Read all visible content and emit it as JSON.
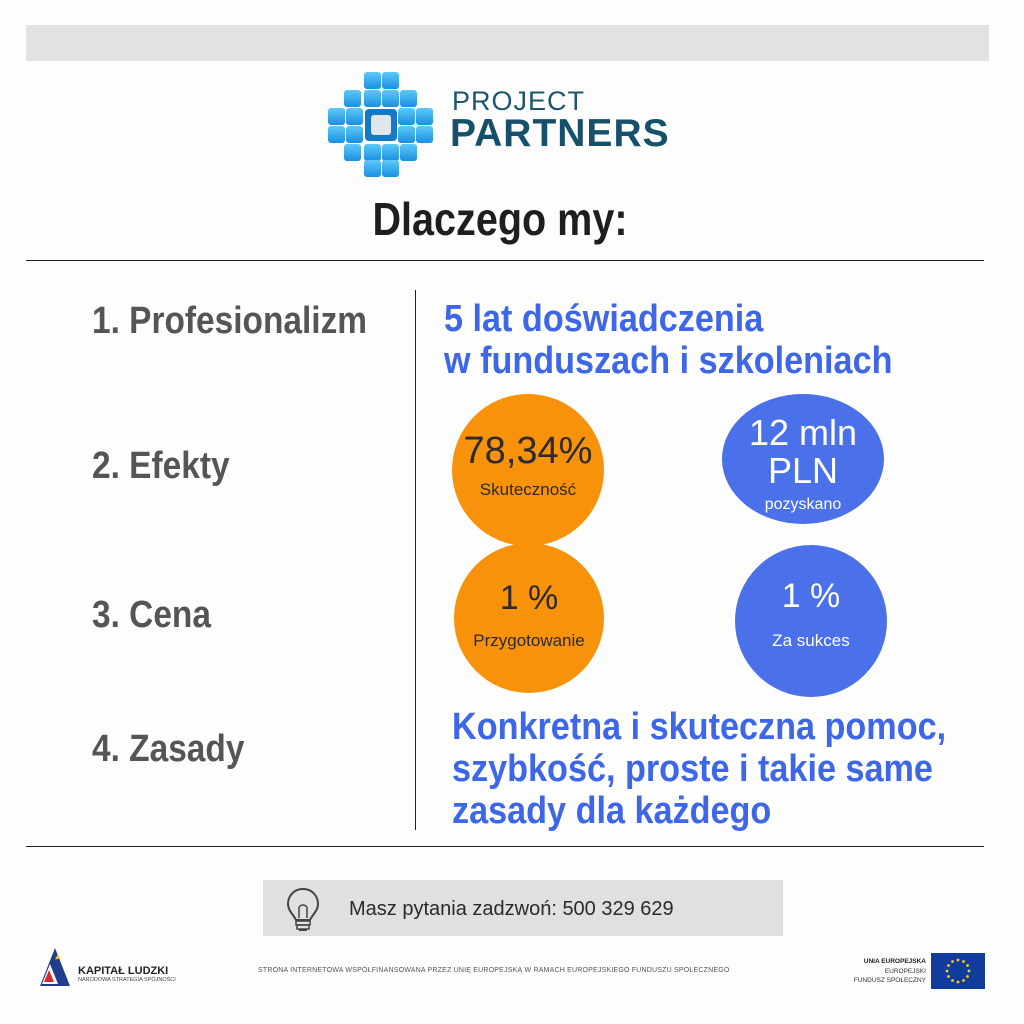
{
  "brand": {
    "line1": "PROJECT",
    "line2": "PARTNERS",
    "icon": "tile-cluster-logo"
  },
  "heading": "Dlaczego my:",
  "rows": [
    {
      "label": "1. Profesionalizm"
    },
    {
      "label": "2. Efekty"
    },
    {
      "label": "3. Cena"
    },
    {
      "label": "4. Zasady"
    }
  ],
  "experience": {
    "line1": "5 lat doświadczenia",
    "line2": "w funduszach i szkoleniach"
  },
  "effects": {
    "success_value": "78,34%",
    "success_label": "Skuteczność",
    "funds_value_1": "12 mln",
    "funds_value_2": "PLN",
    "funds_label": "pozyskano"
  },
  "price": {
    "prep_value": "1 %",
    "prep_label": "Przygotowanie",
    "success_value": "1 %",
    "success_label": "Za sukces"
  },
  "principles": {
    "line1": "Konkretna i skuteczna pomoc,",
    "line2": "szybkość,  proste i takie same",
    "line3": "zasady  dla każdego"
  },
  "contact": {
    "text": "Masz pytania zadzwoń: 500 329 629",
    "icon": "lightbulb-icon"
  },
  "footer": {
    "kl_title": "KAPITAŁ LUDZKI",
    "kl_subtitle": "NARODOWA STRATEGIA SPÓJNOŚCI",
    "note": "STRONA INTERNETOWA WSPÓŁFINANSOWANA PRZEZ UNIĘ EUROPEJSKĄ W RAMACH EUROPEJSKIEGO FUNDUSZU SPOŁECZNEGO",
    "eu_line1": "UNIA EUROPEJSKA",
    "eu_line2": "EUROPEJSKI",
    "eu_line3": "FUNDUSZ SPOŁECZNY"
  },
  "colors": {
    "orange": "#f7920a",
    "blue": "#4a70ea",
    "text_blue": "#3d66e8",
    "logo_blue": "#2aa3e8"
  }
}
